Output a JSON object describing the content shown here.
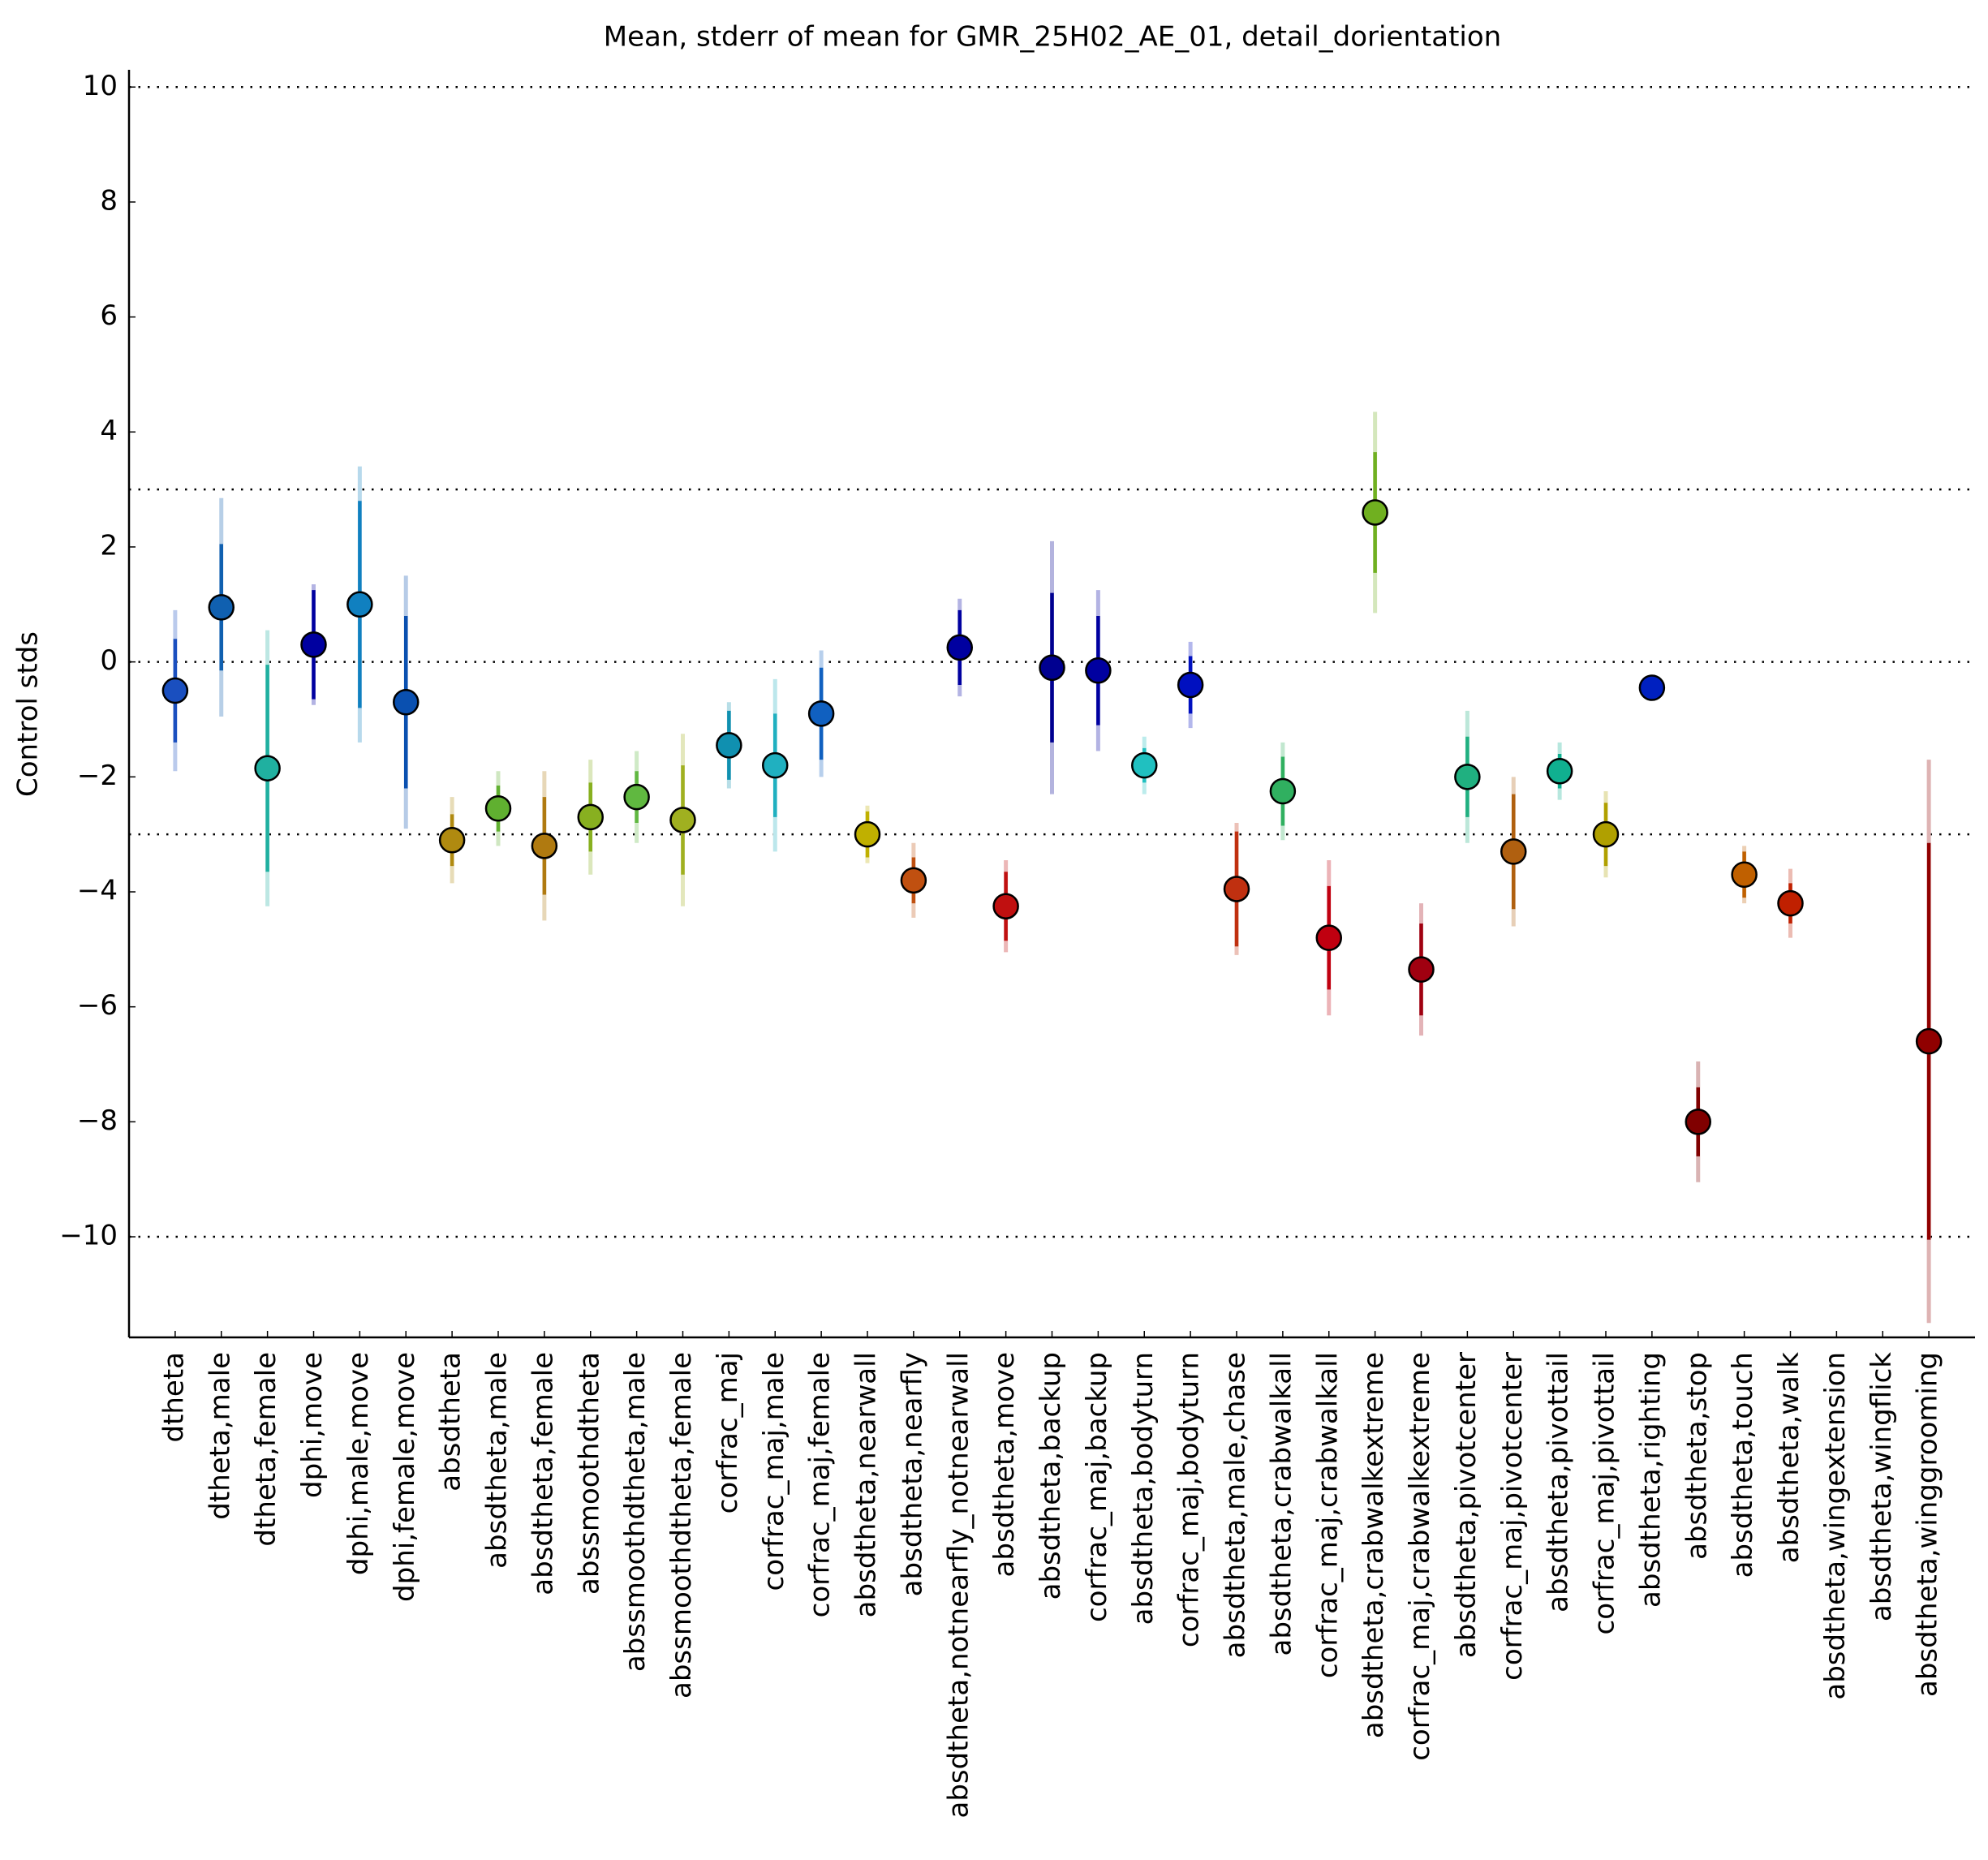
{
  "chart_data": {
    "type": "errorbar",
    "title": "Mean, stderr of mean for GMR_25H02_AE_01, detail_dorientation",
    "y_label": "Control stds",
    "categories": [
      "dtheta",
      "dtheta,male",
      "dtheta,female",
      "dphi,move",
      "dphi,male,move",
      "dphi,female,move",
      "absdtheta",
      "absdtheta,male",
      "absdtheta,female",
      "abssmoothdtheta",
      "abssmoothdtheta,male",
      "abssmoothdtheta,female",
      "corfrac_maj",
      "corfrac_maj,male",
      "corfrac_maj,female",
      "absdtheta,nearwall",
      "absdtheta,nearfly",
      "absdtheta,notnearfly_notnearwall",
      "absdtheta,move",
      "absdtheta,backup",
      "corfrac_maj,backup",
      "absdtheta,bodyturn",
      "corfrac_maj,bodyturn",
      "absdtheta,male,chase",
      "absdtheta,crabwalkall",
      "corfrac_maj,crabwalkall",
      "absdtheta,crabwalkextreme",
      "corfrac_maj,crabwalkextreme",
      "absdtheta,pivotcenter",
      "corfrac_maj,pivotcenter",
      "absdtheta,pivottail",
      "corfrac_maj,pivottail",
      "absdtheta,righting",
      "absdtheta,stop",
      "absdtheta,touch",
      "absdtheta,walk",
      "absdtheta,wingextension",
      "absdtheta,wingflick",
      "absdtheta,winggrooming"
    ],
    "values": [
      -0.5,
      0.95,
      -1.85,
      0.3,
      1.0,
      -0.7,
      -3.1,
      -2.55,
      -3.2,
      -2.7,
      -2.35,
      -2.75,
      -1.45,
      -1.8,
      -0.9,
      -3.0,
      -3.8,
      0.25,
      -4.25,
      -0.1,
      -0.15,
      -1.8,
      -0.4,
      -3.95,
      -2.25,
      -4.8,
      2.6,
      -5.35,
      -2.0,
      -3.3,
      -1.9,
      -3.0,
      -0.45,
      -8.0,
      -3.7,
      -4.2,
      null,
      null,
      -6.6
    ],
    "errors": [
      0.9,
      1.1,
      1.8,
      0.95,
      1.8,
      1.5,
      0.45,
      0.4,
      0.85,
      0.6,
      0.45,
      0.95,
      0.6,
      0.9,
      0.8,
      0.4,
      0.4,
      0.65,
      0.6,
      1.3,
      0.95,
      0.3,
      0.5,
      1.0,
      0.6,
      0.9,
      1.05,
      0.8,
      0.7,
      1.0,
      0.3,
      0.55,
      0,
      0.6,
      0.4,
      0.35,
      null,
      null,
      3.45
    ],
    "outer_errors": [
      1.4,
      1.9,
      2.4,
      1.05,
      2.4,
      2.2,
      0.75,
      0.65,
      1.3,
      1.0,
      0.8,
      1.5,
      0.75,
      1.5,
      1.1,
      0.5,
      0.65,
      0.85,
      0.8,
      2.2,
      1.4,
      0.5,
      0.75,
      1.15,
      0.85,
      1.35,
      1.75,
      1.15,
      1.15,
      1.3,
      0.5,
      0.75,
      0,
      1.05,
      0.5,
      0.6,
      null,
      null,
      4.9
    ],
    "colors": [
      "#1a4fbf",
      "#1060b0",
      "#20b0a0",
      "#0000a0",
      "#1080c0",
      "#0a50b0",
      "#b08a10",
      "#60b030",
      "#b07a10",
      "#88b020",
      "#60b840",
      "#a0b020",
      "#1090b0",
      "#20b0c0",
      "#1060c0",
      "#c0b000",
      "#c05010",
      "#0000a0",
      "#c01010",
      "#000090",
      "#0000a0",
      "#20c0c0",
      "#0010c0",
      "#c03010",
      "#30b060",
      "#c00010",
      "#70b020",
      "#a00010",
      "#20b080",
      "#b06010",
      "#10b090",
      "#b0a000",
      "#0020c0",
      "#800000",
      "#c06000",
      "#c02000",
      "#909090",
      "#a0a0a0",
      "#900000"
    ],
    "xlim": [
      -1,
      39
    ],
    "ylim": [
      -11.75,
      10.3
    ],
    "yticks": [
      {
        "value": -10,
        "label": "−10"
      },
      {
        "value": -8,
        "label": "−8"
      },
      {
        "value": -6,
        "label": "−6"
      },
      {
        "value": -4,
        "label": "−4"
      },
      {
        "value": -2,
        "label": "−2"
      },
      0,
      2,
      4,
      6,
      8,
      10
    ],
    "reference_lines": [
      10,
      3,
      0,
      -3,
      -10
    ]
  }
}
